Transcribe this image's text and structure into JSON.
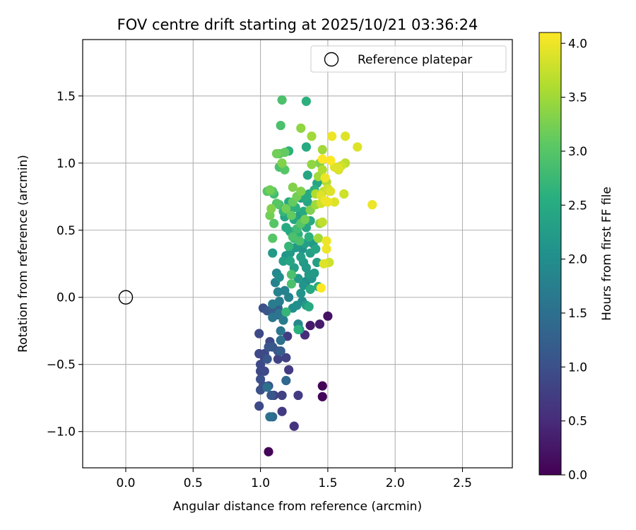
{
  "chart_data": {
    "type": "scatter",
    "title": "FOV centre drift starting at 2025/10/21 03:36:24",
    "xlabel": "Angular distance from reference (arcmin)",
    "ylabel": "Rotation from reference (arcmin)",
    "xlim": [
      -0.32,
      2.87
    ],
    "ylim": [
      -1.27,
      1.92
    ],
    "xticks": [
      0.0,
      0.5,
      1.0,
      1.5,
      2.0,
      2.5
    ],
    "xtick_labels": [
      "0.0",
      "0.5",
      "1.0",
      "1.5",
      "2.0",
      "2.5"
    ],
    "yticks": [
      -1.0,
      -0.5,
      0.0,
      0.5,
      1.0,
      1.5
    ],
    "ytick_labels": [
      "−1.0",
      "−0.5",
      "0.0",
      "0.5",
      "1.0",
      "1.5"
    ],
    "grid": true,
    "legend": {
      "placement": "upper-right",
      "entries": [
        "Reference platepar"
      ]
    },
    "reference_point": {
      "x": 0.0,
      "y": 0.0
    },
    "colorbar": {
      "label": "Hours from first FF file",
      "range": [
        0.0,
        4.1
      ],
      "ticks": [
        0.0,
        0.5,
        1.0,
        1.5,
        2.0,
        2.5,
        3.0,
        3.5,
        4.0
      ],
      "tick_labels": [
        "0.0",
        "0.5",
        "1.0",
        "1.5",
        "2.0",
        "2.5",
        "3.0",
        "3.5",
        "4.0"
      ],
      "colormap": "viridis"
    },
    "points": [
      [
        1.06,
        -1.15,
        0.05
      ],
      [
        1.46,
        -0.66,
        0.05
      ],
      [
        1.46,
        -0.74,
        0.05
      ],
      [
        1.5,
        -0.14,
        0.2
      ],
      [
        1.44,
        -0.2,
        0.3
      ],
      [
        1.37,
        -0.21,
        0.3
      ],
      [
        1.33,
        -0.28,
        0.5
      ],
      [
        1.28,
        -0.2,
        0.5
      ],
      [
        1.25,
        -0.96,
        0.6
      ],
      [
        1.28,
        -0.73,
        0.7
      ],
      [
        1.16,
        -0.85,
        0.7
      ],
      [
        1.16,
        -0.73,
        0.8
      ],
      [
        1.1,
        -0.73,
        0.8
      ],
      [
        1.2,
        -0.29,
        0.7
      ],
      [
        1.21,
        -0.54,
        0.7
      ],
      [
        1.13,
        -0.46,
        0.8
      ],
      [
        1.19,
        -0.45,
        0.8
      ],
      [
        1.03,
        -0.45,
        0.9
      ],
      [
        1.07,
        -0.33,
        0.9
      ],
      [
        0.99,
        -0.81,
        0.9
      ],
      [
        1.0,
        -0.5,
        0.9
      ],
      [
        1.0,
        -0.55,
        0.9
      ],
      [
        1.03,
        -0.55,
        0.9
      ],
      [
        1.03,
        -0.42,
        0.9
      ],
      [
        0.99,
        -0.42,
        0.9
      ],
      [
        0.99,
        -0.27,
        0.9
      ],
      [
        1.0,
        -0.61,
        1.0
      ],
      [
        1.02,
        -0.66,
        1.0
      ],
      [
        1.0,
        -0.69,
        1.0
      ],
      [
        1.06,
        -0.66,
        1.0
      ],
      [
        1.08,
        -0.73,
        1.1
      ],
      [
        1.06,
        -0.37,
        1.1
      ],
      [
        1.09,
        -0.37,
        1.1
      ],
      [
        1.05,
        -0.46,
        1.1
      ],
      [
        1.13,
        -0.4,
        1.1
      ],
      [
        1.15,
        -0.4,
        1.2
      ],
      [
        1.02,
        -0.08,
        1.0
      ],
      [
        1.05,
        -0.1,
        1.1
      ],
      [
        1.09,
        -0.09,
        1.2
      ],
      [
        1.13,
        -0.08,
        1.2
      ],
      [
        1.13,
        -0.13,
        1.3
      ],
      [
        1.19,
        -0.62,
        1.4
      ],
      [
        1.09,
        -0.89,
        1.4
      ],
      [
        1.07,
        -0.89,
        1.5
      ],
      [
        1.05,
        -0.67,
        1.5
      ],
      [
        1.15,
        -0.32,
        1.5
      ],
      [
        1.15,
        -0.25,
        1.6
      ],
      [
        1.09,
        -0.15,
        1.6
      ],
      [
        1.14,
        -0.12,
        1.6
      ],
      [
        1.17,
        -0.17,
        1.7
      ],
      [
        1.09,
        -0.05,
        1.7
      ],
      [
        1.14,
        -0.03,
        1.7
      ],
      [
        1.13,
        0.04,
        1.8
      ],
      [
        1.18,
        0.05,
        1.8
      ],
      [
        1.21,
        0.0,
        1.8
      ],
      [
        1.28,
        -0.2,
        1.9
      ],
      [
        1.29,
        -0.24,
        2.0
      ],
      [
        1.24,
        -0.08,
        2.0
      ],
      [
        1.27,
        -0.06,
        2.0
      ],
      [
        1.31,
        -0.03,
        2.0
      ],
      [
        1.34,
        -0.06,
        2.2
      ],
      [
        1.3,
        0.03,
        2.1
      ],
      [
        1.32,
        0.09,
        2.1
      ],
      [
        1.34,
        0.12,
        2.0
      ],
      [
        1.28,
        0.14,
        2.2
      ],
      [
        1.34,
        0.22,
        2.2
      ],
      [
        1.36,
        0.17,
        2.2
      ],
      [
        1.38,
        0.14,
        2.1
      ],
      [
        1.4,
        0.18,
        2.2
      ],
      [
        1.42,
        0.26,
        2.3
      ],
      [
        1.3,
        0.3,
        2.3
      ],
      [
        1.32,
        0.26,
        2.2
      ],
      [
        1.37,
        0.33,
        2.3
      ],
      [
        1.41,
        0.36,
        2.4
      ],
      [
        1.39,
        0.4,
        2.2
      ],
      [
        1.33,
        0.4,
        2.3
      ],
      [
        1.31,
        0.36,
        2.1
      ],
      [
        1.26,
        0.37,
        2.2
      ],
      [
        1.22,
        0.33,
        2.2
      ],
      [
        1.19,
        0.31,
        2.1
      ],
      [
        1.17,
        0.27,
        2.3
      ],
      [
        1.09,
        0.33,
        2.2
      ],
      [
        1.12,
        0.18,
        1.9
      ],
      [
        1.11,
        0.11,
        1.8
      ],
      [
        1.14,
        0.15,
        2.0
      ],
      [
        1.25,
        0.22,
        2.3
      ],
      [
        1.22,
        0.27,
        2.4
      ],
      [
        1.37,
        0.06,
        2.5
      ],
      [
        1.43,
        0.08,
        2.5
      ],
      [
        1.36,
        -0.07,
        2.5
      ],
      [
        1.28,
        -0.24,
        2.6
      ],
      [
        1.19,
        -0.11,
        2.7
      ],
      [
        1.23,
        0.1,
        2.9
      ],
      [
        1.23,
        0.17,
        2.9
      ],
      [
        1.21,
        0.38,
        2.7
      ],
      [
        1.25,
        0.44,
        2.6
      ],
      [
        1.28,
        0.47,
        2.6
      ],
      [
        1.29,
        0.42,
        2.9
      ],
      [
        1.36,
        0.45,
        2.6
      ],
      [
        1.34,
        0.52,
        2.4
      ],
      [
        1.37,
        0.57,
        2.5
      ],
      [
        1.32,
        0.57,
        2.3
      ],
      [
        1.29,
        0.61,
        2.3
      ],
      [
        1.25,
        0.58,
        2.4
      ],
      [
        1.22,
        0.49,
        2.5
      ],
      [
        1.19,
        0.52,
        2.5
      ],
      [
        1.18,
        0.6,
        2.4
      ],
      [
        1.21,
        0.65,
        2.4
      ],
      [
        1.21,
        0.71,
        2.5
      ],
      [
        1.26,
        0.67,
        2.6
      ],
      [
        1.32,
        0.64,
        2.5
      ],
      [
        1.35,
        0.71,
        2.4
      ],
      [
        1.37,
        0.65,
        2.4
      ],
      [
        1.36,
        0.77,
        2.5
      ],
      [
        1.33,
        0.75,
        2.5
      ],
      [
        1.3,
        0.74,
        2.3
      ],
      [
        1.4,
        0.8,
        2.6
      ],
      [
        1.42,
        0.85,
        2.4
      ],
      [
        1.45,
        0.88,
        2.3
      ],
      [
        1.35,
        0.91,
        2.4
      ],
      [
        1.34,
        1.12,
        2.5
      ],
      [
        1.21,
        1.09,
        2.6
      ],
      [
        1.17,
        0.64,
        2.7
      ],
      [
        1.14,
        0.69,
        2.9
      ],
      [
        1.12,
        0.7,
        3.0
      ],
      [
        1.1,
        0.77,
        2.8
      ],
      [
        1.09,
        0.79,
        3.0
      ],
      [
        1.07,
        0.8,
        3.2
      ],
      [
        1.05,
        0.79,
        3.0
      ],
      [
        1.08,
        0.66,
        3.3
      ],
      [
        1.07,
        0.61,
        3.2
      ],
      [
        1.1,
        0.55,
        3.0
      ],
      [
        1.09,
        0.44,
        3.0
      ],
      [
        1.19,
        0.66,
        3.2
      ],
      [
        1.23,
        0.61,
        3.1
      ],
      [
        1.24,
        0.71,
        3.1
      ],
      [
        1.27,
        0.75,
        3.2
      ],
      [
        1.3,
        0.79,
        3.3
      ],
      [
        1.24,
        0.82,
        3.3
      ],
      [
        1.16,
        1.0,
        3.3
      ],
      [
        1.18,
        0.95,
        3.0
      ],
      [
        1.14,
        0.97,
        2.9
      ],
      [
        1.14,
        1.07,
        3.0
      ],
      [
        1.12,
        1.07,
        3.2
      ],
      [
        1.18,
        1.08,
        3.1
      ],
      [
        1.16,
        1.47,
        2.9
      ],
      [
        1.34,
        1.46,
        2.6
      ],
      [
        1.15,
        1.28,
        2.9
      ],
      [
        1.3,
        1.26,
        3.4
      ],
      [
        1.38,
        1.2,
        3.5
      ],
      [
        1.38,
        0.99,
        3.4
      ],
      [
        1.44,
        1.0,
        3.3
      ],
      [
        1.46,
        1.1,
        3.5
      ],
      [
        1.46,
        0.95,
        3.6
      ],
      [
        1.43,
        0.9,
        3.5
      ],
      [
        1.49,
        0.86,
        3.6
      ],
      [
        1.47,
        0.79,
        3.7
      ],
      [
        1.41,
        0.77,
        3.6
      ],
      [
        1.45,
        0.7,
        3.8
      ],
      [
        1.41,
        0.69,
        3.5
      ],
      [
        1.37,
        0.65,
        3.3
      ],
      [
        1.33,
        0.58,
        3.2
      ],
      [
        1.3,
        0.55,
        3.0
      ],
      [
        1.27,
        0.51,
        2.8
      ],
      [
        1.24,
        0.45,
        2.9
      ],
      [
        1.44,
        0.55,
        3.4
      ],
      [
        1.46,
        0.56,
        3.7
      ],
      [
        1.43,
        0.44,
        3.5
      ],
      [
        1.49,
        0.42,
        4.0
      ],
      [
        1.49,
        0.36,
        4.0
      ],
      [
        1.51,
        0.26,
        3.8
      ],
      [
        1.47,
        0.25,
        3.9
      ],
      [
        1.45,
        0.07,
        4.1
      ],
      [
        1.5,
        0.71,
        4.0
      ],
      [
        1.52,
        0.79,
        3.9
      ],
      [
        1.55,
        0.71,
        3.9
      ],
      [
        1.5,
        0.81,
        3.8
      ],
      [
        1.48,
        0.89,
        4.0
      ],
      [
        1.52,
        1.02,
        4.1
      ],
      [
        1.55,
        0.97,
        3.9
      ],
      [
        1.58,
        0.95,
        3.8
      ],
      [
        1.6,
        0.98,
        3.8
      ],
      [
        1.63,
        1.0,
        3.7
      ],
      [
        1.62,
        0.77,
        3.8
      ],
      [
        1.58,
        0.96,
        3.9
      ],
      [
        1.53,
        1.2,
        4.0
      ],
      [
        1.63,
        1.2,
        3.9
      ],
      [
        1.72,
        1.12,
        3.9
      ],
      [
        1.83,
        0.69,
        4.0
      ],
      [
        1.46,
        1.03,
        4.1
      ],
      [
        1.48,
        0.72,
        4.0
      ],
      [
        1.45,
        0.76,
        3.9
      ]
    ]
  }
}
